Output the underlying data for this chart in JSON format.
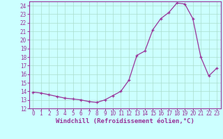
{
  "x_data": [
    0,
    1,
    2,
    3,
    4,
    5,
    6,
    7,
    8,
    9,
    10,
    11,
    12,
    13,
    14,
    15,
    16,
    17,
    18,
    19,
    20,
    21,
    22,
    23
  ],
  "y_data": [
    13.9,
    13.8,
    13.6,
    13.4,
    13.2,
    13.1,
    13.0,
    12.8,
    12.7,
    13.0,
    13.5,
    14.0,
    15.3,
    18.2,
    18.7,
    21.2,
    22.5,
    23.2,
    24.3,
    24.2,
    22.5,
    18.0,
    15.8,
    16.7
  ],
  "line_color": "#993399",
  "marker_color": "#993399",
  "bg_color": "#ccffff",
  "grid_color": "#aaddcc",
  "axis_color": "#993399",
  "tick_color": "#993399",
  "xlabel": "Windchill (Refroidissement éolien,°C)",
  "xlabel_fontsize": 6.5,
  "ylim": [
    12,
    24.5
  ],
  "xlim": [
    -0.5,
    23.5
  ],
  "yticks": [
    12,
    13,
    14,
    15,
    16,
    17,
    18,
    19,
    20,
    21,
    22,
    23,
    24
  ],
  "xticks": [
    0,
    1,
    2,
    3,
    4,
    5,
    6,
    7,
    8,
    9,
    10,
    11,
    12,
    13,
    14,
    15,
    16,
    17,
    18,
    19,
    20,
    21,
    22,
    23
  ],
  "tick_fontsize": 5.5
}
